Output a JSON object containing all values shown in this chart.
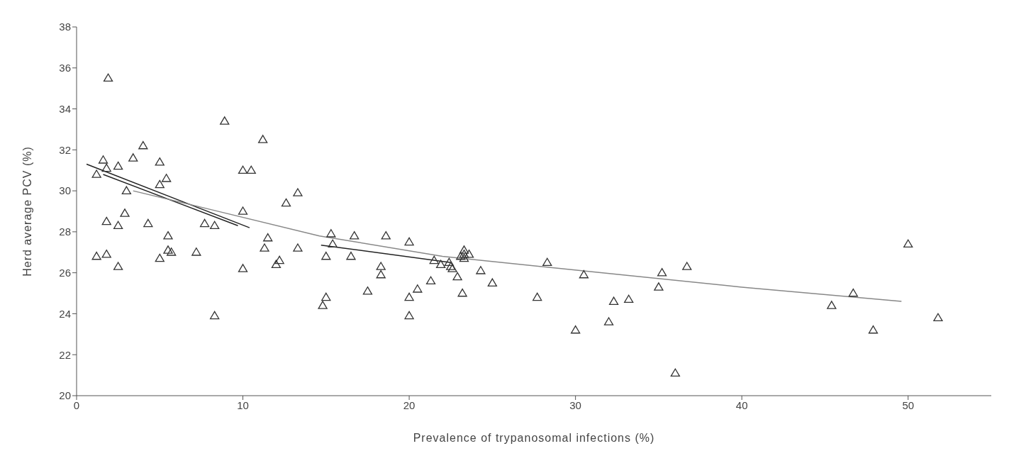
{
  "chart_data": {
    "type": "scatter",
    "xlabel": "Prevalence of trypanosomal infections (%)",
    "ylabel": "Herd average PCV (%)",
    "xlim": [
      0,
      55
    ],
    "xticks": [
      0,
      10,
      20,
      30,
      40,
      50
    ],
    "ylim": [
      20,
      38
    ],
    "yticks": [
      20,
      22,
      24,
      26,
      28,
      30,
      32,
      34,
      36,
      38
    ],
    "grid": false,
    "legend": false,
    "series": [
      {
        "marker": "triangle",
        "color": "#333333",
        "x": [
          1.2,
          1.6,
          1.8,
          1.9,
          1.2,
          1.8,
          1.8,
          2.5,
          2.5,
          2.5,
          2.9,
          3.0,
          3.4,
          4.0,
          4.3,
          5.0,
          5.0,
          5.4,
          5.0,
          5.5,
          5.5,
          5.7,
          7.2,
          7.7,
          8.3,
          8.3,
          8.9,
          10.0,
          10.5,
          10.0,
          10.0,
          11.2,
          11.3,
          11.5,
          12.0,
          12.2,
          12.6,
          13.3,
          13.3,
          14.8,
          15.0,
          15.0,
          15.3,
          15.4,
          16.5,
          16.7,
          17.5,
          18.3,
          18.3,
          18.6,
          20.0,
          20.0,
          20.0,
          20.5,
          21.3,
          21.5,
          21.9,
          22.4,
          22.5,
          22.6,
          22.9,
          23.1,
          23.3,
          23.3,
          23.3,
          23.6,
          23.2,
          24.3,
          25.0,
          27.7,
          28.3,
          30.0,
          30.5,
          32.0,
          32.3,
          33.2,
          35.0,
          35.2,
          36.0,
          36.7,
          45.4,
          46.7,
          47.9,
          50.0,
          51.8
        ],
        "values": [
          30.8,
          31.5,
          31.1,
          35.5,
          26.8,
          26.9,
          28.5,
          31.2,
          28.3,
          26.3,
          28.9,
          30.0,
          31.6,
          32.2,
          28.4,
          31.4,
          30.3,
          30.6,
          26.7,
          27.8,
          27.1,
          27.0,
          27.0,
          28.4,
          28.3,
          23.9,
          33.4,
          31.0,
          31.0,
          29.0,
          26.2,
          32.5,
          27.2,
          27.7,
          26.4,
          26.6,
          29.4,
          29.9,
          27.2,
          24.4,
          24.8,
          26.8,
          27.9,
          27.4,
          26.8,
          27.8,
          25.1,
          26.3,
          25.9,
          27.8,
          27.5,
          24.8,
          23.9,
          25.2,
          25.6,
          26.6,
          26.4,
          26.5,
          26.3,
          26.2,
          25.8,
          26.8,
          27.1,
          26.9,
          26.7,
          26.9,
          25.0,
          26.1,
          25.5,
          24.8,
          26.5,
          23.2,
          25.9,
          23.6,
          24.6,
          24.7,
          25.3,
          26.0,
          21.1,
          26.3,
          24.4,
          25.0,
          23.2,
          27.4,
          23.8
        ]
      },
      {
        "type": "line",
        "color": "#222222",
        "x": [
          0.6,
          10.4
        ],
        "values": [
          31.3,
          28.2
        ]
      },
      {
        "type": "line",
        "color": "#222222",
        "x": [
          1.6,
          9.7
        ],
        "values": [
          30.8,
          28.3
        ]
      },
      {
        "type": "line",
        "color": "#888888",
        "x": [
          3.4,
          8,
          14.6,
          22,
          31,
          40,
          49.6
        ],
        "values": [
          30.0,
          29.1,
          27.8,
          26.8,
          26.05,
          25.3,
          24.6
        ]
      },
      {
        "type": "line",
        "color": "#222222",
        "x": [
          14.7,
          22.5
        ],
        "values": [
          27.35,
          26.5
        ]
      }
    ]
  }
}
